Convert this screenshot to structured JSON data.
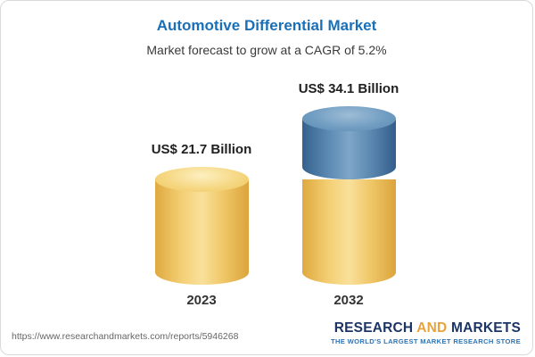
{
  "chart_data": {
    "type": "bar",
    "title": "Automotive Differential Market",
    "subtitle": "Market forecast to grow at a CAGR of 5.2%",
    "unit": "US$ Billion",
    "cagr": "5.2%",
    "categories": [
      "2023",
      "2032"
    ],
    "values": [
      21.7,
      34.1
    ],
    "ylim": [
      0,
      34.1
    ],
    "grid": false,
    "legend": null,
    "bars": [
      {
        "category": "2023",
        "value": 21.7,
        "label": "US$ 21.7 Billion",
        "color": "#F2CC71"
      },
      {
        "category": "2032",
        "value": 34.1,
        "label": "US$ 34.1 Billion",
        "segments": [
          {
            "value": 21.7,
            "color": "#F2CC71"
          },
          {
            "value": 12.4,
            "color": "#4E81AD"
          }
        ]
      }
    ],
    "colors": {
      "yellow": "#F2CC71",
      "blue": "#4E81AD",
      "title_blue": "#1A70B8"
    }
  },
  "footer": {
    "url": "https://www.researchandmarkets.com/reports/5946268",
    "logo": {
      "part1": "RESEARCH",
      "part2": "AND",
      "part3": "MARKETS",
      "tagline": "THE WORLD'S LARGEST MARKET RESEARCH STORE"
    }
  }
}
